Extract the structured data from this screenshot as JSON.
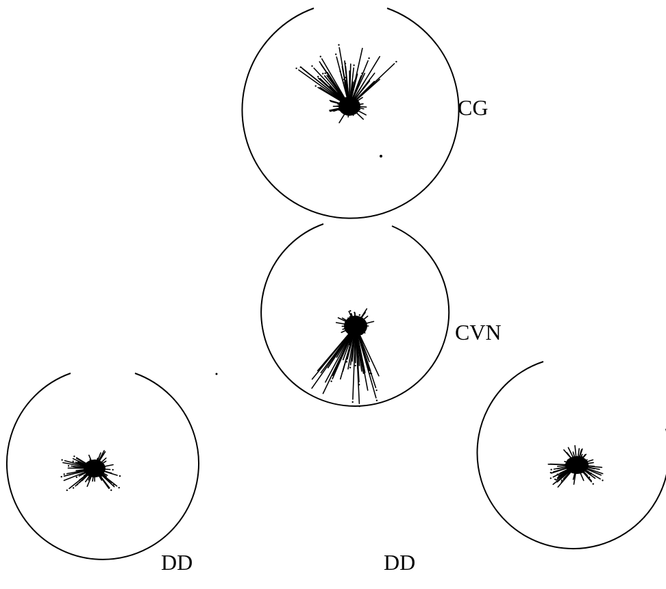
{
  "labels": {
    "cg": "CG",
    "cvn": "CVN",
    "dd_left": "DD",
    "dd_right": "DD"
  },
  "colors": {
    "ink": "#000000",
    "background": "#ffffff"
  }
}
